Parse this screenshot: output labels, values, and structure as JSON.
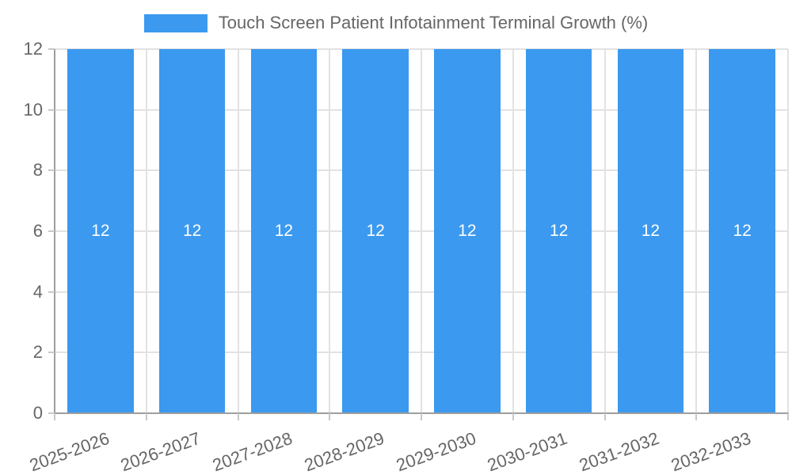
{
  "chart_data": {
    "type": "bar",
    "title": "Touch Screen Patient Infotainment Terminal Growth (%)",
    "categories": [
      "2025-2026",
      "2026-2027",
      "2027-2028",
      "2028-2029",
      "2029-2030",
      "2030-2031",
      "2031-2032",
      "2032-2033"
    ],
    "values": [
      12,
      12,
      12,
      12,
      12,
      12,
      12,
      12
    ],
    "bar_labels": [
      "12",
      "12",
      "12",
      "12",
      "12",
      "12",
      "12",
      "12"
    ],
    "xlabel": "",
    "ylabel": "",
    "ylim": [
      0,
      12
    ],
    "yticks": [
      0,
      2,
      4,
      6,
      8,
      10,
      12
    ],
    "grid": "on",
    "legend_position": "top-center",
    "x_label_rotation_deg": -20,
    "colors": {
      "bar": "#3b99ef",
      "bar_value_text": "#ffffff",
      "axis_line": "#9e9e9e",
      "gridline": "#e2e2e2",
      "tick": "#c8c8c8",
      "tick_text": "#666666",
      "legend_text": "#666666",
      "background": "#ffffff"
    }
  }
}
